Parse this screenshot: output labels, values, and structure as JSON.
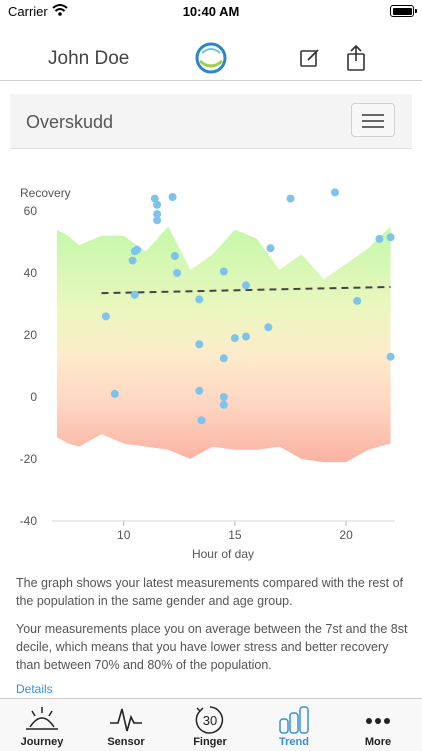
{
  "status_bar": {
    "carrier": "Carrier",
    "time": "10:40 AM"
  },
  "nav": {
    "user_name": "John Doe"
  },
  "card": {
    "title": "Overskudd"
  },
  "chart_data": {
    "type": "scatter",
    "ylabel": "Recovery",
    "xlabel": "Hour of day",
    "xlim": [
      7.0,
      22.2
    ],
    "ylim": [
      -40,
      65
    ],
    "x_ticks": [
      10,
      15,
      20
    ],
    "y_ticks": [
      60,
      40,
      20,
      0,
      -20,
      -40
    ],
    "grid": false,
    "points": [
      [
        9.2,
        26
      ],
      [
        9.6,
        1
      ],
      [
        10.4,
        44
      ],
      [
        10.5,
        47
      ],
      [
        10.6,
        47.5
      ],
      [
        10.5,
        33
      ],
      [
        11.4,
        64
      ],
      [
        11.5,
        62
      ],
      [
        11.5,
        59
      ],
      [
        11.5,
        57
      ],
      [
        12.2,
        64.5
      ],
      [
        12.3,
        45.5
      ],
      [
        12.4,
        40
      ],
      [
        13.4,
        31.5
      ],
      [
        13.4,
        17
      ],
      [
        13.4,
        2
      ],
      [
        13.5,
        -7.5
      ],
      [
        14.5,
        40.5
      ],
      [
        14.5,
        12.5
      ],
      [
        14.5,
        0
      ],
      [
        14.5,
        -2.5
      ],
      [
        15.0,
        19
      ],
      [
        15.5,
        19.5
      ],
      [
        15.5,
        36
      ],
      [
        16.5,
        22.5
      ],
      [
        16.6,
        48
      ],
      [
        17.5,
        64
      ],
      [
        19.5,
        66
      ],
      [
        20.5,
        31
      ],
      [
        21.5,
        51
      ],
      [
        22.0,
        51.5
      ],
      [
        22.0,
        13
      ]
    ],
    "trend": {
      "start": [
        9.0,
        33.5
      ],
      "end": [
        22.0,
        35.5
      ]
    },
    "band": {
      "x": [
        7.0,
        7.5,
        8.0,
        9.0,
        10.0,
        11.0,
        12.0,
        13.0,
        14.0,
        15.0,
        16.0,
        17.0,
        18.0,
        19.0,
        20.0,
        21.0,
        22.0
      ],
      "upper": [
        54,
        52,
        49,
        52,
        52,
        47,
        55,
        41,
        46,
        54,
        51,
        41,
        46,
        38,
        43,
        48,
        55
      ],
      "lower": [
        -13,
        -15,
        -16,
        -12,
        -15,
        -16,
        -17,
        -20,
        -16,
        -17,
        -17,
        -16,
        -20,
        -21,
        -21,
        -17,
        -15
      ]
    },
    "colors": {
      "points": "#7ec3ec",
      "trend": "#444444",
      "top": "#b9f59c",
      "bottom": "#fbb6a8"
    }
  },
  "description": {
    "p1": "The graph shows your latest measurements compared with the rest of the population in the same gender and age group.",
    "p2": "Your measurements place you on average between the 7st and the 8st decile, which means that you have lower stress and better recovery than between 70% and 80% of the population.",
    "details": "Details"
  },
  "tabs": [
    {
      "label": "Journey",
      "icon": "sunrise-icon"
    },
    {
      "label": "Sensor",
      "icon": "heartbeat-icon"
    },
    {
      "label": "Finger",
      "icon": "timer-30-icon",
      "icon_text": "30"
    },
    {
      "label": "Trend",
      "icon": "bar-chart-icon"
    },
    {
      "label": "More",
      "icon": "more-dots-icon"
    }
  ]
}
